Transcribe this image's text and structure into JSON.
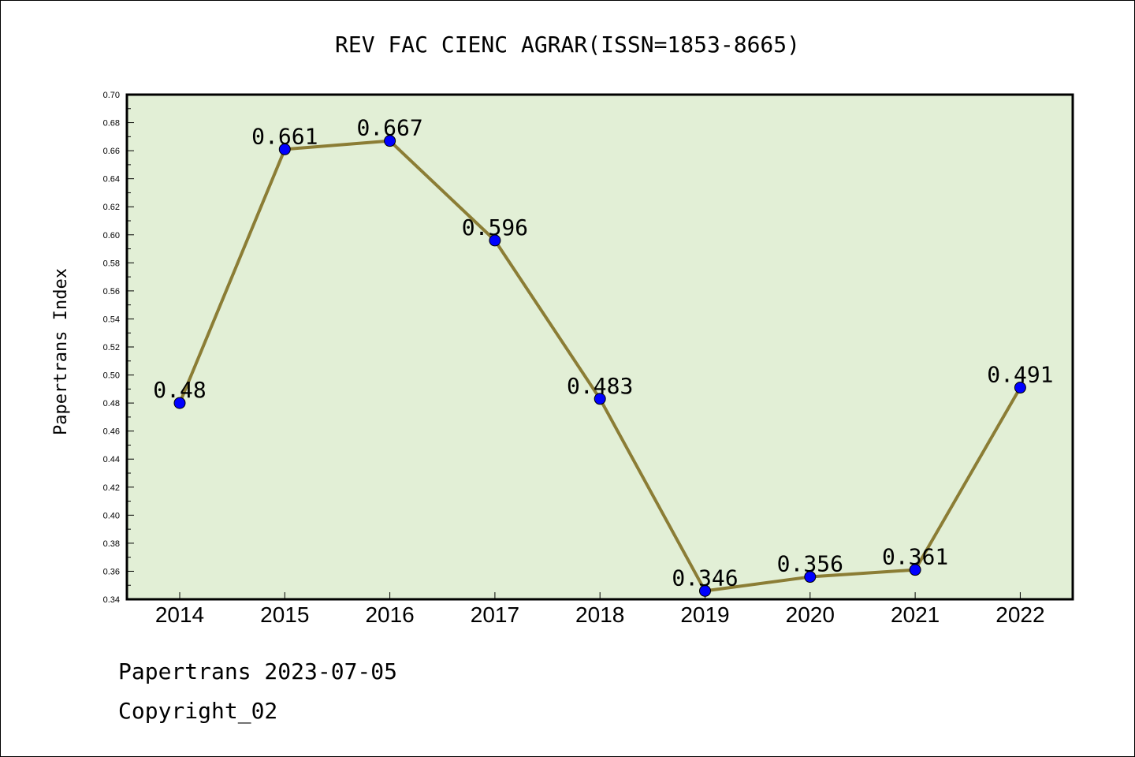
{
  "chart_data": {
    "type": "line",
    "title": "REV FAC CIENC AGRAR(ISSN=1853-8665)",
    "xlabel": "",
    "ylabel": "Papertrans Index",
    "categories": [
      "2014",
      "2015",
      "2016",
      "2017",
      "2018",
      "2019",
      "2020",
      "2021",
      "2022"
    ],
    "values": [
      0.48,
      0.661,
      0.667,
      0.596,
      0.483,
      0.346,
      0.356,
      0.361,
      0.491
    ],
    "data_labels": [
      "0.48",
      "0.661",
      "0.667",
      "0.596",
      "0.483",
      "0.346",
      "0.356",
      "0.361",
      "0.491"
    ],
    "ylim": [
      0.34,
      0.7
    ],
    "y_ticks": [
      "0.34",
      "0.36",
      "0.38",
      "0.40",
      "0.42",
      "0.44",
      "0.46",
      "0.48",
      "0.50",
      "0.52",
      "0.54",
      "0.56",
      "0.58",
      "0.60",
      "0.62",
      "0.64",
      "0.66",
      "0.68",
      "0.70"
    ],
    "grid": false,
    "legend": "none",
    "colors": {
      "plot_background": "#e2efd6",
      "line": "#8b7d35",
      "marker": "#0000ff"
    }
  },
  "footer": {
    "date_line": "Papertrans 2023-07-05",
    "copyright": "Copyright_02"
  }
}
